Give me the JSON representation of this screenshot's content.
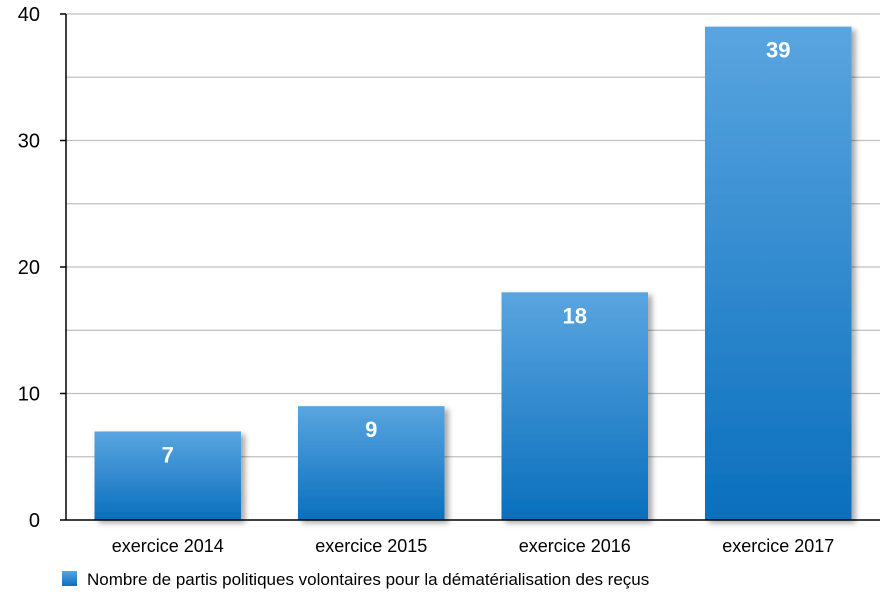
{
  "chart_data": {
    "type": "bar",
    "categories": [
      "exercice 2014",
      "exercice 2015",
      "exercice 2016",
      "exercice 2017"
    ],
    "series": [
      {
        "name": "Nombre de partis politiques volontaires pour la dématérialisation des reçus",
        "values": [
          7,
          9,
          18,
          39
        ]
      }
    ],
    "ylim": [
      0,
      40
    ],
    "yticks": [
      0,
      10,
      20,
      30,
      40
    ],
    "grid": true,
    "legend_position": "bottom-left",
    "colors": {
      "bar_top": "#5aa5e0",
      "bar_bottom": "#0a6fbd",
      "grid": "#c0c0c0",
      "axis": "#000000"
    }
  }
}
